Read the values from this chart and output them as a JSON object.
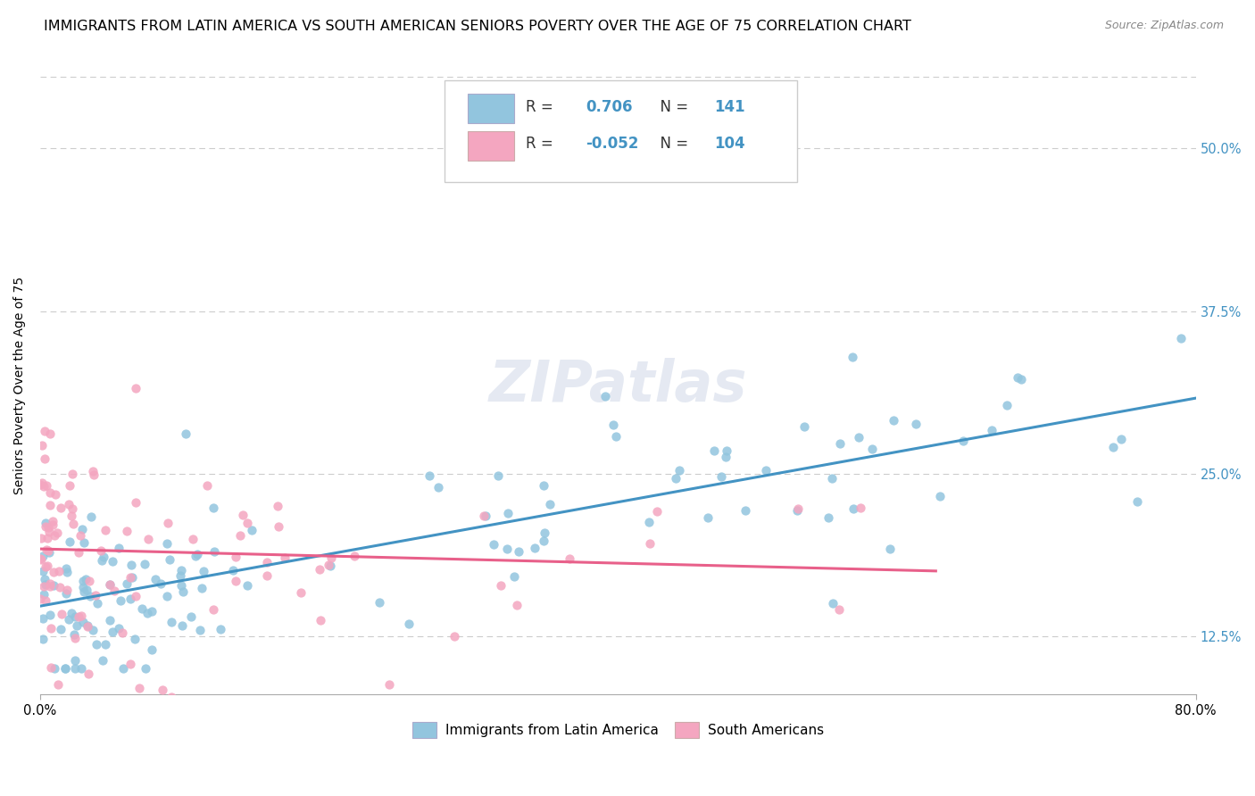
{
  "title": "IMMIGRANTS FROM LATIN AMERICA VS SOUTH AMERICAN SENIORS POVERTY OVER THE AGE OF 75 CORRELATION CHART",
  "source": "Source: ZipAtlas.com",
  "ylabel": "Seniors Poverty Over the Age of 75",
  "ytick_labels": [
    "12.5%",
    "25.0%",
    "37.5%",
    "50.0%"
  ],
  "ytick_values": [
    0.125,
    0.25,
    0.375,
    0.5
  ],
  "xlim": [
    0.0,
    0.8
  ],
  "ylim": [
    0.08,
    0.555
  ],
  "watermark": "ZIPatlas",
  "legend_blue_r": "0.706",
  "legend_blue_n": "141",
  "legend_pink_r": "-0.052",
  "legend_pink_n": "104",
  "legend_blue_label": "Immigrants from Latin America",
  "legend_pink_label": "South Americans",
  "blue_color": "#92c5de",
  "blue_line_color": "#4393c3",
  "pink_color": "#f4a6c0",
  "pink_line_color": "#e8608a",
  "blue_scatter_alpha": 0.85,
  "pink_scatter_alpha": 0.85,
  "marker_size": 55,
  "blue_trendline_x": [
    0.0,
    0.8
  ],
  "blue_trendline_y": [
    0.148,
    0.308
  ],
  "pink_trendline_x": [
    0.0,
    0.62
  ],
  "pink_trendline_y": [
    0.192,
    0.175
  ],
  "grid_color": "#cccccc",
  "background_color": "#ffffff",
  "title_fontsize": 11.5,
  "axis_label_fontsize": 10,
  "tick_fontsize": 10.5,
  "legend_fontsize": 12
}
